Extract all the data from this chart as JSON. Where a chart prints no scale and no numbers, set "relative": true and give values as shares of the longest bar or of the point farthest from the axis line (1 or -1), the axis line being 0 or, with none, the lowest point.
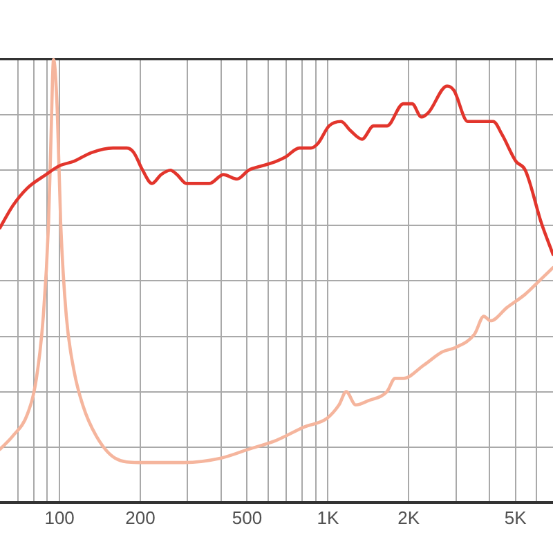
{
  "chart_data": {
    "type": "line",
    "relative": true,
    "log": "x",
    "xlim": [
      60,
      6900
    ],
    "xticks": [
      {
        "value": 70,
        "label": null
      },
      {
        "value": 80,
        "label": null
      },
      {
        "value": 90,
        "label": null
      },
      100,
      200,
      {
        "value": 300,
        "label": null
      },
      {
        "value": 400,
        "label": null
      },
      500,
      {
        "value": 600,
        "label": null
      },
      {
        "value": 700,
        "label": null
      },
      {
        "value": 800,
        "label": null
      },
      {
        "value": 900,
        "label": null
      },
      {
        "value": 1000,
        "label": "1K"
      },
      {
        "value": 2000,
        "label": "2K"
      },
      {
        "value": 3000,
        "label": null
      },
      {
        "value": 4000,
        "label": null
      },
      {
        "value": 5000,
        "label": "5K"
      },
      {
        "value": 6000,
        "label": null
      }
    ],
    "grid": true,
    "legend": false,
    "marker": "none",
    "tick_labels": "x",
    "series": [
      {
        "color": "#e2352c",
        "x": [
          60,
          67,
          76,
          89,
          100,
          113,
          132,
          158,
          178,
          189,
          204,
          221,
          239,
          259,
          274,
          297,
          328,
          362,
          408,
          459,
          507,
          570,
          642,
          696,
          783,
          864,
          917,
          1010,
          1120,
          1210,
          1340,
          1480,
          1660,
          1910,
          2060,
          2230,
          2370,
          2780,
          2950,
          3320,
          3660,
          4130,
          4460,
          5020,
          5440,
          6250,
          6900
        ],
        "values": [
          0.62,
          0.67,
          0.71,
          0.74,
          0.76,
          0.77,
          0.79,
          0.8,
          0.8,
          0.79,
          0.75,
          0.72,
          0.74,
          0.75,
          0.74,
          0.72,
          0.72,
          0.72,
          0.74,
          0.73,
          0.75,
          0.76,
          0.77,
          0.78,
          0.8,
          0.8,
          0.81,
          0.85,
          0.86,
          0.84,
          0.82,
          0.85,
          0.85,
          0.9,
          0.9,
          0.87,
          0.88,
          0.94,
          0.93,
          0.86,
          0.86,
          0.86,
          0.83,
          0.77,
          0.75,
          0.63,
          0.56
        ]
      },
      {
        "color": "#f5b59d",
        "x": [
          60,
          67,
          76,
          82,
          87,
          91,
          93,
          95,
          98,
          101,
          106,
          113,
          122,
          137,
          161,
          196,
          291,
          400,
          507,
          642,
          814,
          993,
          1100,
          1170,
          1270,
          1420,
          1660,
          1780,
          1910,
          2280,
          2670,
          3000,
          3520,
          3810,
          4040,
          4650,
          5440,
          6130,
          6900
        ],
        "values": [
          0.12,
          0.15,
          0.2,
          0.28,
          0.42,
          0.63,
          0.83,
          1,
          0.89,
          0.63,
          0.42,
          0.3,
          0.22,
          0.15,
          0.1,
          0.09,
          0.09,
          0.1,
          0.12,
          0.14,
          0.17,
          0.19,
          0.22,
          0.25,
          0.22,
          0.23,
          0.25,
          0.28,
          0.28,
          0.31,
          0.34,
          0.35,
          0.38,
          0.42,
          0.41,
          0.44,
          0.47,
          0.5,
          0.53
        ]
      }
    ]
  }
}
